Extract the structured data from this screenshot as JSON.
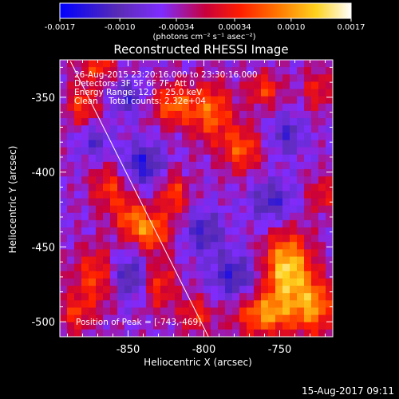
{
  "chart_data": {
    "type": "heatmap",
    "title": "Reconstructed RHESSI Image",
    "xlabel": "Heliocentric X (arcsec)",
    "ylabel": "Heliocentric Y (arcsec)",
    "xlim": [
      -895,
      -715
    ],
    "ylim": [
      -510,
      -325
    ],
    "x_ticks": [
      -850,
      -800,
      -750
    ],
    "x_tick_labels": [
      "-850",
      "-800",
      "-750"
    ],
    "y_ticks": [
      -350,
      -400,
      -450,
      -500
    ],
    "y_tick_labels": [
      "-350",
      "-400",
      "-450",
      "-500"
    ],
    "colorbar": {
      "range": [
        -0.0017,
        0.0017
      ],
      "tick_values": [
        -0.0017,
        -0.001,
        -0.00034,
        0.00034,
        0.001,
        0.0017
      ],
      "tick_labels": [
        "-0.0017",
        "-0.0010",
        "-0.00034",
        "0.00034",
        "0.0010",
        "0.0017"
      ],
      "unit_label": "(photons cm⁻² s⁻¹ asec⁻²)",
      "colors": [
        "#0000ff",
        "#5a2cb4",
        "#7f2cff",
        "#c8003c",
        "#ff1e00",
        "#ff7800",
        "#ffd21e",
        "#ffffff"
      ]
    },
    "annotations": [
      "26-Aug-2015 23:20:16.000 to 23:30:16.000",
      "Detectors: 3F 5F 6F 7F, Att 0",
      "Energy Range: 12.0 - 25.0 keV",
      "Clean    Total counts: 2.32e+04"
    ],
    "peak_label": "Position of Peak = [-743,-469]",
    "peak": [
      -743,
      -469
    ],
    "limb_line": [
      [
        -888,
        -326
      ],
      [
        -796,
        -512
      ]
    ],
    "grid": false,
    "blobs": [
      {
        "x": -745,
        "y": -465,
        "sx": 11,
        "sy": 17,
        "a": 1.0
      },
      {
        "x": -760,
        "y": -495,
        "sx": 14,
        "sy": 10,
        "a": 0.72
      },
      {
        "x": -727,
        "y": -490,
        "sx": 9,
        "sy": 13,
        "a": 0.7
      },
      {
        "x": -820,
        "y": -355,
        "sx": 10,
        "sy": 10,
        "a": 0.62
      },
      {
        "x": -795,
        "y": -360,
        "sx": 10,
        "sy": 14,
        "a": 0.62
      },
      {
        "x": -775,
        "y": -385,
        "sx": 9,
        "sy": 11,
        "a": 0.58
      },
      {
        "x": -760,
        "y": -345,
        "sx": 8,
        "sy": 8,
        "a": 0.5
      },
      {
        "x": -835,
        "y": -440,
        "sx": 9,
        "sy": 9,
        "a": 0.65
      },
      {
        "x": -848,
        "y": -430,
        "sx": 8,
        "sy": 9,
        "a": 0.5
      },
      {
        "x": -820,
        "y": -415,
        "sx": 7,
        "sy": 11,
        "a": 0.52
      },
      {
        "x": -830,
        "y": -475,
        "sx": 8,
        "sy": 12,
        "a": 0.5
      },
      {
        "x": -870,
        "y": -470,
        "sx": 11,
        "sy": 14,
        "a": 0.55
      },
      {
        "x": -885,
        "y": -495,
        "sx": 8,
        "sy": 9,
        "a": 0.42
      },
      {
        "x": -862,
        "y": -410,
        "sx": 9,
        "sy": 11,
        "a": 0.48
      },
      {
        "x": -880,
        "y": -355,
        "sx": 8,
        "sy": 10,
        "a": 0.5
      },
      {
        "x": -870,
        "y": -330,
        "sx": 9,
        "sy": 7,
        "a": 0.48
      },
      {
        "x": -805,
        "y": -495,
        "sx": 8,
        "sy": 9,
        "a": 0.44
      },
      {
        "x": -725,
        "y": -345,
        "sx": 7,
        "sy": 10,
        "a": 0.4
      },
      {
        "x": -722,
        "y": -415,
        "sx": 7,
        "sy": 9,
        "a": 0.38
      },
      {
        "x": -840,
        "y": -395,
        "sx": 10,
        "sy": 10,
        "a": -0.55
      },
      {
        "x": -850,
        "y": -470,
        "sx": 10,
        "sy": 11,
        "a": -0.55
      },
      {
        "x": -780,
        "y": -470,
        "sx": 11,
        "sy": 11,
        "a": -0.5
      },
      {
        "x": -755,
        "y": -420,
        "sx": 10,
        "sy": 10,
        "a": -0.45
      },
      {
        "x": -800,
        "y": -440,
        "sx": 9,
        "sy": 10,
        "a": -0.45
      },
      {
        "x": -850,
        "y": -350,
        "sx": 8,
        "sy": 8,
        "a": -0.42
      },
      {
        "x": -745,
        "y": -375,
        "sx": 8,
        "sy": 9,
        "a": -0.4
      },
      {
        "x": -872,
        "y": -380,
        "sx": 7,
        "sy": 8,
        "a": -0.35
      }
    ]
  }
}
